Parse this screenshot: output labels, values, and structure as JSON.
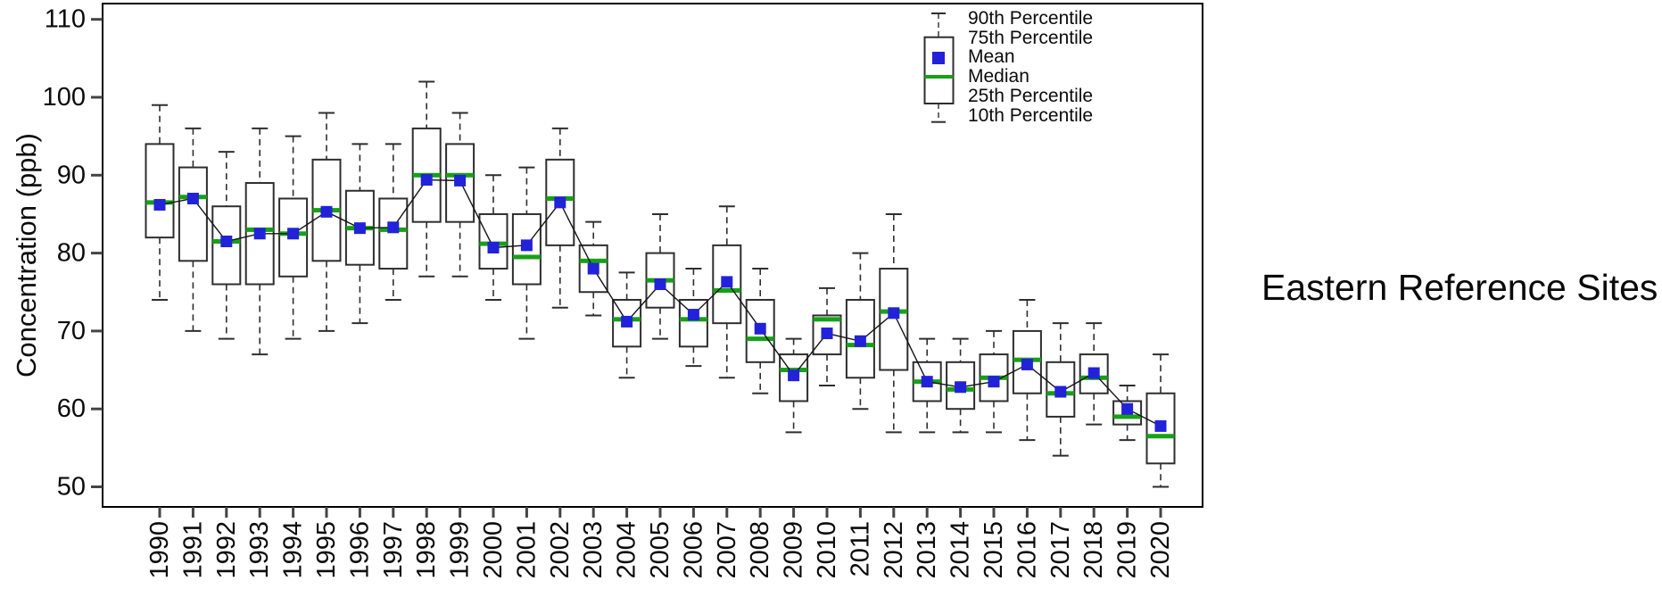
{
  "page": {
    "side_title": "Eastern Reference Sites"
  },
  "y_axis": {
    "label": "Concentration (ppb)"
  },
  "legend": {
    "items": [
      "90th Percentile",
      "75th Percentile",
      "Mean",
      "Median",
      "25th Percentile",
      "10th Percentile"
    ]
  },
  "colors": {
    "median_green": "#18a018",
    "mean_blue": "#2222d8",
    "box_border": "#2e2e2e",
    "whisker": "#2e2e2e",
    "mean_line": "#141414",
    "frame": "#000000",
    "text": "#0b0b0b"
  },
  "chart_data": {
    "type": "boxplot",
    "subtype": "box-whisker-with-mean-line",
    "title": "Eastern Reference Sites",
    "xlabel": "",
    "ylabel": "Concentration (ppb)",
    "ylim": [
      47.5,
      112
    ],
    "y_ticks": [
      110,
      100,
      90,
      80,
      70,
      60,
      50
    ],
    "grid": false,
    "legend_position": "top-right-inside",
    "categories": [
      "1990",
      "1991",
      "1992",
      "1993",
      "1994",
      "1995",
      "1996",
      "1997",
      "1998",
      "1999",
      "2000",
      "2001",
      "2002",
      "2003",
      "2004",
      "2005",
      "2006",
      "2007",
      "2008",
      "2009",
      "2010",
      "2011",
      "2012",
      "2013",
      "2014",
      "2015",
      "2016",
      "2017",
      "2018",
      "2019",
      "2020"
    ],
    "series": [
      {
        "name": "90th Percentile",
        "values": [
          99,
          96,
          93,
          96,
          95,
          98,
          94,
          94,
          102,
          98,
          90,
          91,
          96,
          84,
          77.5,
          85,
          78,
          86,
          78,
          69,
          75.5,
          80,
          85,
          69,
          69,
          70,
          74,
          71,
          71,
          63,
          67
        ]
      },
      {
        "name": "75th Percentile",
        "values": [
          94,
          91,
          86,
          89,
          87,
          92,
          88,
          87,
          96,
          94,
          85,
          85,
          92,
          81,
          74,
          80,
          74,
          81,
          74,
          67,
          72,
          74,
          78,
          66,
          66,
          67,
          70,
          66,
          67,
          61,
          62
        ]
      },
      {
        "name": "Mean",
        "values": [
          86.2,
          87,
          81.5,
          82.5,
          82.5,
          85.3,
          83.2,
          83.3,
          89.4,
          89.3,
          80.7,
          81,
          86.5,
          78,
          71.2,
          76,
          72.1,
          76.3,
          70.3,
          64.3,
          69.7,
          68.7,
          72.3,
          63.5,
          62.8,
          63.5,
          65.7,
          62.2,
          64.6,
          60,
          57.8
        ]
      },
      {
        "name": "Median",
        "values": [
          86.5,
          87.2,
          81.5,
          83,
          82.5,
          85.5,
          83.2,
          83,
          90,
          90,
          81.2,
          79.5,
          87,
          79,
          71.5,
          76.5,
          71.5,
          75.2,
          69,
          65,
          71.5,
          68.2,
          72.5,
          63.5,
          62.5,
          64,
          66.3,
          62,
          64,
          59,
          56.5
        ]
      },
      {
        "name": "25th Percentile",
        "values": [
          82,
          79,
          76,
          76,
          77,
          79,
          78.5,
          78,
          84,
          84,
          78,
          76,
          81,
          75,
          68,
          73,
          68,
          71,
          66,
          61,
          67,
          64,
          65,
          61,
          60,
          61,
          62,
          59,
          62,
          58,
          53
        ]
      },
      {
        "name": "10th Percentile",
        "values": [
          74,
          70,
          69,
          67,
          69,
          70,
          71,
          74,
          77,
          77,
          74,
          69,
          73,
          72,
          64,
          69,
          65.5,
          64,
          62,
          57,
          63,
          60,
          57,
          57,
          57,
          57,
          56,
          54,
          58,
          56,
          50
        ]
      }
    ]
  }
}
